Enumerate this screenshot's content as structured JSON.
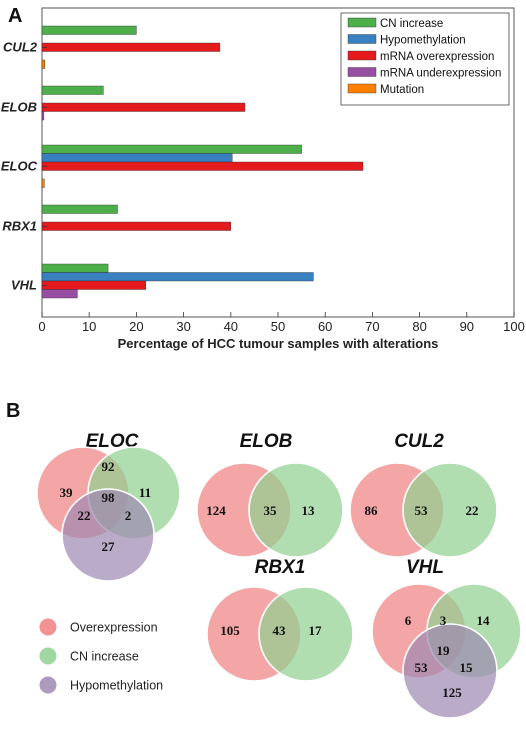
{
  "panel_a_letter": "A",
  "panel_b_letter": "B",
  "chart_data": {
    "type": "bar",
    "orientation": "horizontal",
    "categories": [
      "CUL2",
      "ELOB",
      "ELOC",
      "RBX1",
      "VHL"
    ],
    "series": [
      {
        "name": "CN increase",
        "color": "#4daf4a",
        "values": [
          20,
          13,
          55,
          16,
          14
        ]
      },
      {
        "name": "Hypomethylation",
        "color": "#3a7fbf",
        "values": [
          0,
          0,
          40.3,
          0,
          57.5
        ]
      },
      {
        "name": "mRNA overexpression",
        "color": "#e41a1c",
        "values": [
          37.7,
          43,
          68,
          40,
          22
        ]
      },
      {
        "name": "mRNA underexpression",
        "color": "#984ea3",
        "values": [
          0,
          0.4,
          0,
          0,
          7.5
        ]
      },
      {
        "name": "Mutation",
        "color": "#ff7f00",
        "values": [
          0.6,
          0,
          0.5,
          0,
          0
        ]
      }
    ],
    "xlabel": "Percentage of HCC tumour samples with alterations",
    "ylabel": "",
    "xlim": [
      0,
      100
    ],
    "xticks": [
      "0",
      "10",
      "20",
      "30",
      "40",
      "50",
      "60",
      "70",
      "80",
      "90",
      "100"
    ],
    "grid": false,
    "legend_position": "top-right"
  },
  "venn": {
    "legend": [
      {
        "label": "Overexpression",
        "color": "#f08080"
      },
      {
        "label": "CN increase",
        "color": "#90d090"
      },
      {
        "label": "Hypomethylation",
        "color": "#9d89b0"
      }
    ],
    "diagrams": [
      {
        "gene": "ELOC",
        "regions": {
          "over_only": "39",
          "over_cn": "92",
          "cn_only": "11",
          "all_three": "98",
          "over_hypo": "22",
          "cn_hypo": "2",
          "hypo_only": "27"
        }
      },
      {
        "gene": "ELOB",
        "regions": {
          "over_only": "124",
          "over_cn": "35",
          "cn_only": "13"
        }
      },
      {
        "gene": "CUL2",
        "regions": {
          "over_only": "86",
          "over_cn": "53",
          "cn_only": "22"
        }
      },
      {
        "gene": "RBX1",
        "regions": {
          "over_only": "105",
          "over_cn": "43",
          "cn_only": "17"
        }
      },
      {
        "gene": "VHL",
        "regions": {
          "over_only": "6",
          "over_cn": "3",
          "cn_only": "14",
          "all_three": "19",
          "over_hypo": "53",
          "cn_hypo": "15",
          "hypo_only": "125"
        }
      }
    ]
  }
}
